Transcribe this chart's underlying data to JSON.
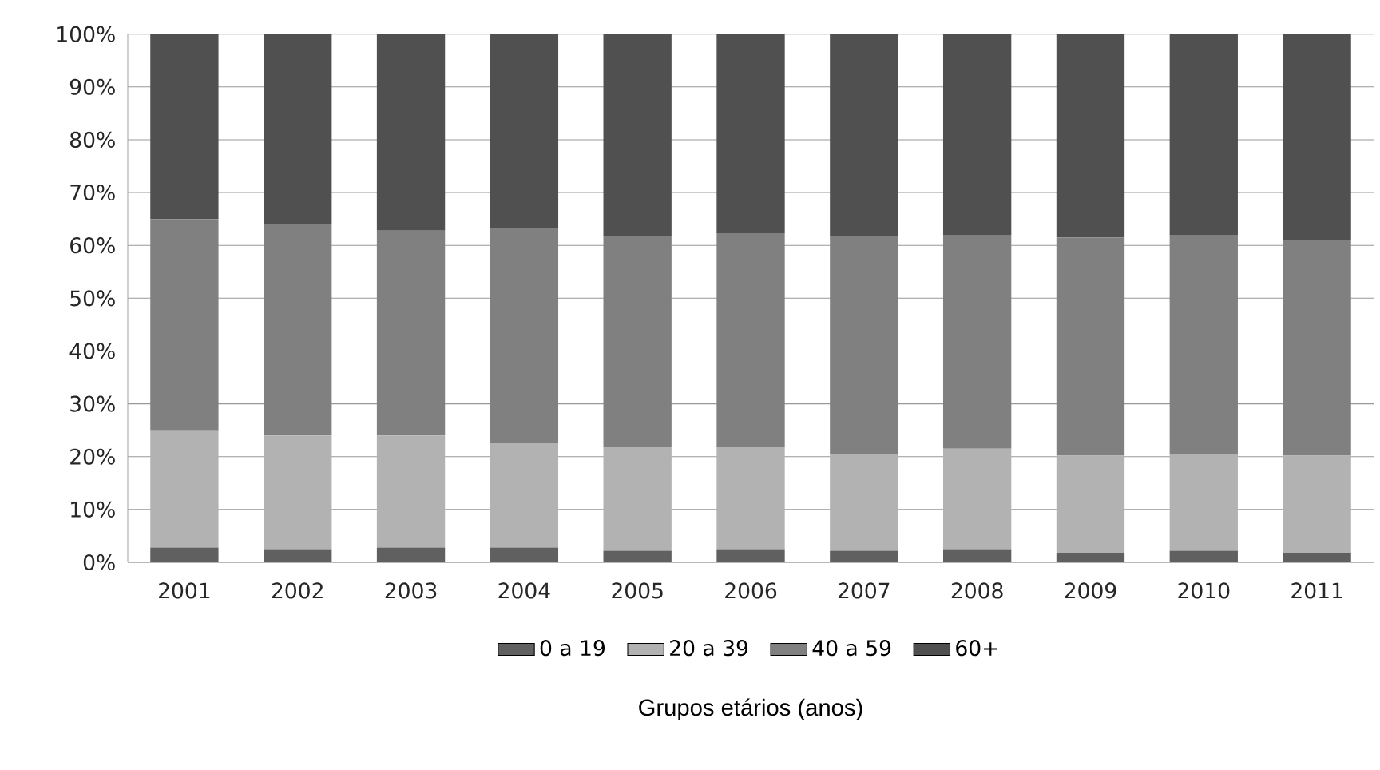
{
  "chart_data": {
    "type": "bar",
    "stacked": true,
    "xlabel": "Grupos etários (anos)",
    "categories": [
      "2001",
      "2002",
      "2003",
      "2004",
      "2005",
      "2006",
      "2007",
      "2008",
      "2009",
      "2010",
      "2011"
    ],
    "series": [
      {
        "name": "0 a 19",
        "color": "#606060",
        "values": [
          2.8,
          2.5,
          2.8,
          2.8,
          2.2,
          2.5,
          2.2,
          2.5,
          1.8,
          2.2,
          1.8
        ]
      },
      {
        "name": "20 a 39",
        "color": "#b2b2b2",
        "values": [
          22.2,
          21.5,
          21.2,
          19.9,
          19.6,
          19.3,
          18.3,
          19.0,
          18.4,
          18.3,
          18.4
        ]
      },
      {
        "name": "40 a 59",
        "color": "#808080",
        "values": [
          40,
          40,
          38.8,
          40.6,
          40,
          40.5,
          41.3,
          40.5,
          41.3,
          41.5,
          40.8
        ]
      },
      {
        "name": "60+",
        "color": "#505050",
        "values": [
          35,
          36,
          37.2,
          36.7,
          38.2,
          37.7,
          38.2,
          38,
          38.5,
          38,
          39
        ]
      }
    ],
    "ylim": [
      0,
      100
    ],
    "yticks": [
      {
        "value": 0,
        "label": "0%"
      },
      {
        "value": 10,
        "label": "10%"
      },
      {
        "value": 20,
        "label": "20%"
      },
      {
        "value": 30,
        "label": "30%"
      },
      {
        "value": 40,
        "label": "40%"
      },
      {
        "value": 50,
        "label": "50%"
      },
      {
        "value": 60,
        "label": "60%"
      },
      {
        "value": 70,
        "label": "70%"
      },
      {
        "value": 80,
        "label": "80%"
      },
      {
        "value": 90,
        "label": "90%"
      },
      {
        "value": 100,
        "label": "100%"
      }
    ],
    "grid": "y",
    "legend": "bottom"
  }
}
